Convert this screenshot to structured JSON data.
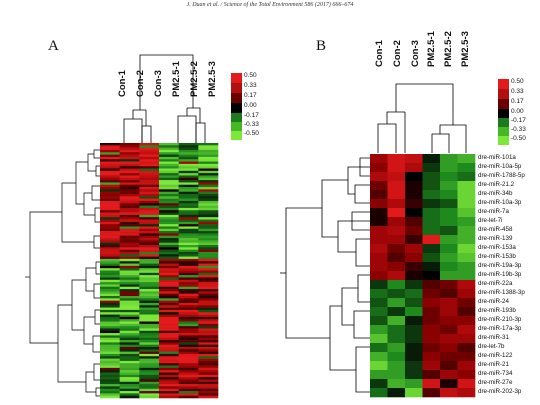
{
  "header": "J. Duan et al. / Science of the Total Environment 586 (2017) 666–674",
  "panels": [
    {
      "label": "A",
      "columns": [
        "Con-1",
        "Con-2",
        "Con-3",
        "PM2.5-1",
        "PM2.5-2",
        "PM2.5-3"
      ],
      "legend": [
        "0.50",
        "0.33",
        "0.17",
        "0.00",
        "-0.17",
        "-0.33",
        "-0.50"
      ]
    },
    {
      "label": "B",
      "columns": [
        "Con-1",
        "Con-2",
        "Con-3",
        "PM2.5-1",
        "PM2.5-2",
        "PM2.5-3"
      ],
      "legend": [
        "0.50",
        "0.33",
        "0.17",
        "0.00",
        "-0.17",
        "-0.33",
        "-0.50"
      ],
      "rows": [
        "dre-miR-101a",
        "dre-miR-10a-5p",
        "dre-miR-1788-5p",
        "dre-miR-21.2",
        "dre-miR-34b",
        "dre-miR-10a-3p",
        "dre-miR-7a",
        "dre-let-7i",
        "dre-miR-458",
        "dre-miR-139",
        "dre-miR-153a",
        "dre-miR-153b",
        "dre-miR-19a-3p",
        "dre-miR-19b-3p",
        "dre-miR-22a",
        "dre-miR-1388-3p",
        "dre-miR-24",
        "dre-miR-193b",
        "dre-miR-210-3p",
        "dre-miR-17a-3p",
        "dre-miR-31",
        "dre-let-7b",
        "dre-miR-122",
        "dre-miR-21",
        "dre-miR-734",
        "dre-miR-27e",
        "dre-miR-202-3p"
      ]
    }
  ],
  "colors": {
    "high": "#e31a1c",
    "mid_high": "#8b0000",
    "zero": "#000000",
    "mid_low": "#1e8a1e",
    "low": "#7ee83a"
  },
  "heatmap_b_values": [
    [
      0.3,
      0.45,
      0.4,
      -0.05,
      -0.3,
      -0.35
    ],
    [
      0.25,
      0.45,
      0.35,
      -0.1,
      -0.3,
      -0.25
    ],
    [
      0.35,
      0.4,
      0.0,
      -0.15,
      -0.25,
      -0.2
    ],
    [
      0.2,
      0.45,
      0.05,
      -0.15,
      -0.3,
      -0.45
    ],
    [
      0.15,
      0.45,
      0.05,
      -0.2,
      -0.25,
      -0.45
    ],
    [
      0.25,
      0.35,
      0.1,
      -0.1,
      -0.15,
      -0.45
    ],
    [
      0.05,
      0.5,
      0.0,
      -0.2,
      -0.25,
      -0.4
    ],
    [
      0.05,
      0.3,
      0.15,
      -0.2,
      -0.25,
      -0.3
    ],
    [
      0.3,
      0.35,
      0.2,
      -0.2,
      -0.15,
      -0.35
    ],
    [
      0.3,
      0.3,
      0.1,
      0.5,
      -0.3,
      -0.35
    ],
    [
      0.35,
      0.2,
      0.3,
      -0.1,
      -0.25,
      -0.45
    ],
    [
      0.3,
      0.15,
      0.25,
      -0.15,
      -0.3,
      -0.4
    ],
    [
      0.3,
      0.25,
      0.1,
      -0.05,
      -0.25,
      -0.3
    ],
    [
      0.25,
      0.35,
      0.05,
      0.0,
      -0.3,
      -0.3
    ],
    [
      -0.1,
      -0.25,
      -0.1,
      0.15,
      0.2,
      0.35
    ],
    [
      -0.2,
      -0.15,
      -0.2,
      0.2,
      0.15,
      0.3
    ],
    [
      -0.15,
      -0.3,
      -0.15,
      0.25,
      0.3,
      0.2
    ],
    [
      -0.2,
      -0.1,
      -0.25,
      0.2,
      0.3,
      0.15
    ],
    [
      -0.15,
      -0.35,
      -0.05,
      0.2,
      0.25,
      0.25
    ],
    [
      -0.3,
      -0.2,
      -0.1,
      0.25,
      0.2,
      0.35
    ],
    [
      -0.4,
      -0.2,
      -0.1,
      0.25,
      0.3,
      0.3
    ],
    [
      -0.2,
      -0.3,
      -0.05,
      0.2,
      0.25,
      0.15
    ],
    [
      -0.35,
      -0.25,
      -0.05,
      0.25,
      0.2,
      0.2
    ],
    [
      -0.45,
      -0.3,
      -0.1,
      0.3,
      0.15,
      0.3
    ],
    [
      -0.3,
      -0.3,
      -0.1,
      0.15,
      0.3,
      0.25
    ],
    [
      -0.1,
      -0.35,
      -0.3,
      0.45,
      0.05,
      0.45
    ],
    [
      -0.2,
      -0.05,
      -0.45,
      0.15,
      0.4,
      0.35
    ]
  ]
}
